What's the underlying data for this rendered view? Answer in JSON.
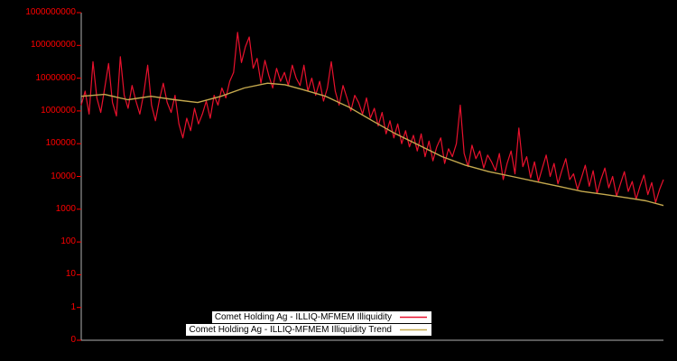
{
  "chart_data": {
    "type": "line",
    "title": "",
    "xlabel": "",
    "ylabel": "",
    "background_color": "#000000",
    "axis_color": "#b0b0b0",
    "grid": false,
    "y_axis": {
      "scale": "log",
      "color": "#ff0000",
      "tick_labels": [
        "1000000000",
        "100000000",
        "10000000",
        "1000000",
        "100000",
        "10000",
        "1000",
        "100",
        "10",
        "1",
        "0"
      ]
    },
    "x_axis": {
      "tick_labels": []
    },
    "legend": {
      "position": "bottom-center",
      "background": "#ffffff",
      "text_color": "#000000"
    },
    "series": [
      {
        "name": "Comet Holding Ag - ILLIQ-MFMEM Illiquidity",
        "color": "#e8112d",
        "stroke_width": 1.2,
        "values": [
          1500000.0,
          4000000.0,
          800000.0,
          32000000.0,
          2500000.0,
          900000.0,
          5000000.0,
          28000000.0,
          1800000.0,
          700000.0,
          45000000.0,
          3000000.0,
          1200000.0,
          6000000.0,
          2000000.0,
          800000.0,
          3500000.0,
          25000000.0,
          1500000.0,
          500000.0,
          2200000.0,
          7000000.0,
          1800000.0,
          900000.0,
          3000000.0,
          400000.0,
          150000.0,
          600000.0,
          250000.0,
          1200000.0,
          400000.0,
          800000.0,
          2000000.0,
          600000.0,
          3000000.0,
          1500000.0,
          5000000.0,
          2500000.0,
          8000000.0,
          15000000.0,
          250000000.0,
          30000000.0,
          90000000.0,
          180000000.0,
          20000000.0,
          40000000.0,
          7000000.0,
          35000000.0,
          12000000.0,
          5000000.0,
          20000000.0,
          8000000.0,
          15000000.0,
          6000000.0,
          25000000.0,
          10000000.0,
          6000000.0,
          25000000.0,
          4000000.0,
          10000000.0,
          3000000.0,
          8000000.0,
          2000000.0,
          5000000.0,
          32000000.0,
          4000000.0,
          1500000.0,
          6000000.0,
          2500000.0,
          1000000.0,
          3000000.0,
          1800000.0,
          800000.0,
          2500000.0,
          600000.0,
          1200000.0,
          350000.0,
          900000.0,
          200000.0,
          500000.0,
          150000.0,
          400000.0,
          100000.0,
          250000.0,
          80000.0,
          180000.0,
          60000.0,
          200000.0,
          40000.0,
          120000.0,
          30000.0,
          80000.0,
          150000.0,
          25000.0,
          70000.0,
          40000.0,
          100000.0,
          1500000.0,
          50000.0,
          20000.0,
          90000.0,
          35000.0,
          60000.0,
          18000.0,
          45000.0,
          28000.0,
          15000.0,
          50000.0,
          8000.0,
          25000.0,
          60000.0,
          12000.0,
          300000.0,
          20000.0,
          40000.0,
          9000.0,
          28000.0,
          7000.0,
          18000.0,
          45000.0,
          10000.0,
          25000.0,
          6000.0,
          15000.0,
          35000.0,
          8000.0,
          12000.0,
          4000.0,
          9000.0,
          22000.0,
          5000.0,
          15000.0,
          3000.0,
          8000.0,
          18000.0,
          4500.0,
          10000.0,
          2500.0,
          6000.0,
          14000.0,
          3500.0,
          7000.0,
          2000.0,
          5000.0,
          11000.0,
          2800.0,
          6500.0,
          1600.0,
          4000.0,
          8000.0
        ]
      },
      {
        "name": "Comet Holding Ag - ILLIQ-MFMEM Illiquidity Trend",
        "color": "#c5a94e",
        "stroke_width": 1.4,
        "x": [
          0,
          0.04,
          0.08,
          0.12,
          0.16,
          0.2,
          0.24,
          0.28,
          0.32,
          0.35,
          0.38,
          0.42,
          0.46,
          0.5,
          0.54,
          0.58,
          0.62,
          0.66,
          0.7,
          0.74,
          0.78,
          0.82,
          0.86,
          0.9,
          0.94,
          0.97,
          1.0
        ],
        "values": [
          2800000.0,
          3200000.0,
          2200000.0,
          2800000.0,
          2200000.0,
          1800000.0,
          2800000.0,
          5000000.0,
          7000000.0,
          6300000.0,
          4500000.0,
          2800000.0,
          1300000.0,
          500000.0,
          200000.0,
          90000.0,
          40000.0,
          22000.0,
          14000.0,
          10000.0,
          7000.0,
          5000.0,
          3500.0,
          2800.0,
          2200.0,
          1800.0,
          1300.0
        ]
      }
    ]
  }
}
